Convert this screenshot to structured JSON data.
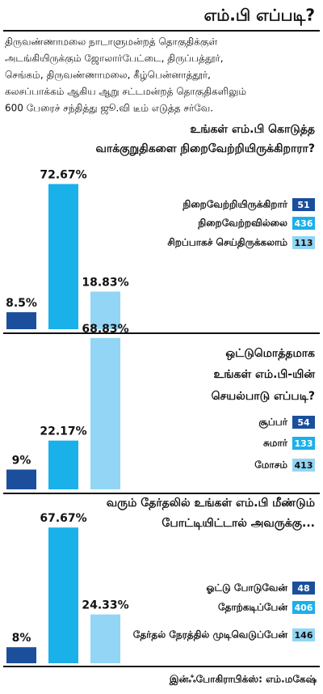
{
  "title": "எம்.பி எப்படி?",
  "intro": [
    "திருவண்ணாமலை நாடாளுமன்றத் தொகுதிக்குள்",
    "அடங்கியிருக்கும் ஜோலார்பேட்டை, திருப்பத்தூர்,",
    "செங்கம், திருவண்ணாமலை, கீழ்பென்னாத்தூர்,",
    "கலசப்பாக்கம் ஆகிய ஆறு சட்டமன்றத் தொகுதிகளிலும்",
    "600 பேரைச் சந்தித்து ஜூ.வி டீம் எடுத்த சர்வே."
  ],
  "credit": "இன்ஃபோகிராபிக்ஸ்: எம்.மகேஷ்",
  "chart_data": [
    {
      "type": "bar",
      "title": [
        "உங்கள் எம்.பி கொடுத்த",
        "வாக்குறுதிகளை நிறைவேற்றியிருக்கிறாரா?"
      ],
      "categories": [
        "நிறைவேற்றியிருக்கிறார்",
        "நிறைவேற்றவில்லை",
        "சிறப்பாகச் செய்திருக்கலாம்"
      ],
      "values": [
        8.5,
        72.67,
        18.83
      ],
      "value_labels": [
        "8.5%",
        "72.67%",
        "18.83%"
      ],
      "counts": [
        51,
        436,
        113
      ],
      "colors": [
        "#1b4f9c",
        "#1ab0ea",
        "#92d5f5"
      ]
    },
    {
      "type": "bar",
      "title": [
        "ஒட்டுமொத்தமாக",
        "உங்கள் எம்.பி-யின்",
        "செயல்பாடு எப்படி?"
      ],
      "categories": [
        "சூப்பர்",
        "சுமார்",
        "மோசம்"
      ],
      "values": [
        9,
        22.17,
        68.83
      ],
      "value_labels": [
        "9%",
        "22.17%",
        "68.83%"
      ],
      "counts": [
        54,
        133,
        413
      ],
      "colors": [
        "#1b4f9c",
        "#1ab0ea",
        "#92d5f5"
      ]
    },
    {
      "type": "bar",
      "title": [
        "வரும் தேர்தலில் உங்கள் எம்.பி மீண்டும்",
        "போட்டியிட்டால் அவருக்கு..."
      ],
      "categories": [
        "ஓட்டு போடுவேன்",
        "தோற்கடிப்பேன்",
        "தேர்தல் நேரத்தில் முடிவெடுப்பேன்"
      ],
      "values": [
        8,
        67.67,
        24.33
      ],
      "value_labels": [
        "8%",
        "67.67%",
        "24.33%"
      ],
      "counts": [
        48,
        406,
        146
      ],
      "colors": [
        "#1b4f9c",
        "#1ab0ea",
        "#92d5f5"
      ]
    }
  ]
}
